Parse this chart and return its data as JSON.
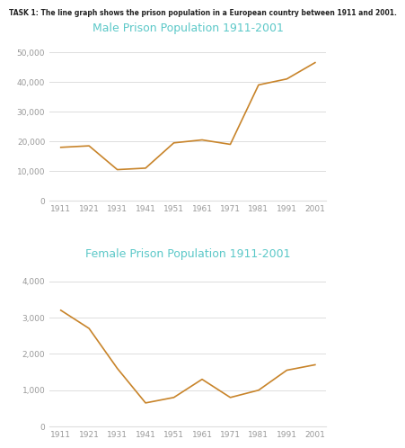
{
  "task_label": "TASK 1: The line graph shows the prison population in a European country between 1911 and 2001.",
  "years": [
    1911,
    1921,
    1931,
    1941,
    1951,
    1961,
    1971,
    1981,
    1991,
    2001
  ],
  "male_values": [
    18000,
    18500,
    10500,
    11000,
    19500,
    20500,
    19000,
    39000,
    41000,
    46500
  ],
  "female_values": [
    3200,
    2700,
    1600,
    650,
    800,
    1300,
    800,
    1000,
    1550,
    1700
  ],
  "male_title": "Male Prison Population 1911-2001",
  "female_title": "Female Prison Population 1911-2001",
  "line_color": "#C8842A",
  "title_color": "#5BC8C8",
  "task_label_color": "#222222",
  "bg_color": "#FFFFFF",
  "grid_color": "#DDDDDD",
  "tick_label_color": "#999999",
  "male_ylim": [
    0,
    55000
  ],
  "male_yticks": [
    0,
    10000,
    20000,
    30000,
    40000,
    50000
  ],
  "female_ylim": [
    0,
    4500
  ],
  "female_yticks": [
    0,
    1000,
    2000,
    3000,
    4000
  ],
  "task_fontsize": 5.5,
  "title_fontsize": 9.0,
  "tick_fontsize": 6.5
}
